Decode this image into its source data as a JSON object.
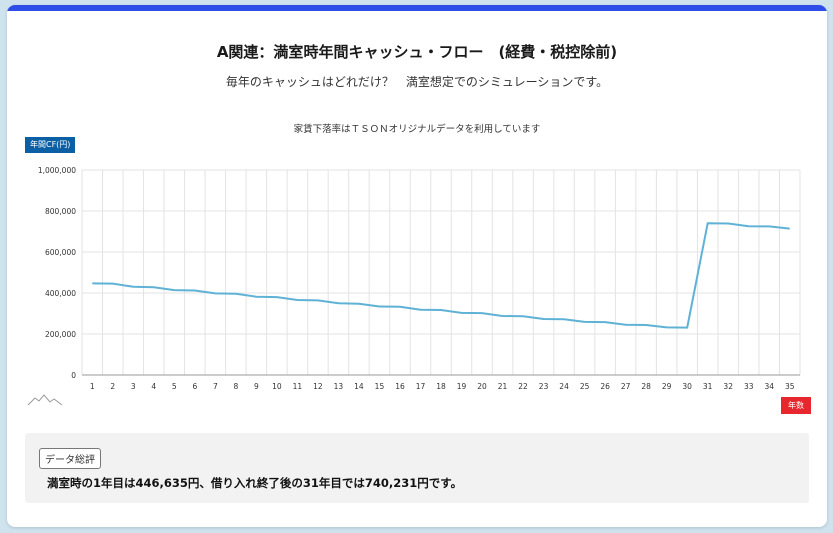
{
  "header": {
    "title": "A関連：満室時年間キャッシュ・フロー　(経費・税控除前)",
    "subtitle": "毎年のキャッシュはどれだけ？　満室想定でのシミュレーションです。",
    "note": "家賃下落率はＴＳＯＮオリジナルデータを利用しています"
  },
  "colors": {
    "topbar": "#2e4ee8",
    "line": "#5fb2d6",
    "ybadge": "#0b5fa5",
    "xbadge": "#e8262d"
  },
  "chart_data": {
    "type": "line",
    "ylabel": "年間CF(円)",
    "xlabel": "年数",
    "ylim": [
      0,
      1000000
    ],
    "yticks": [
      "0",
      "200,000",
      "400,000",
      "600,000",
      "800,000",
      "1,000,000"
    ],
    "grid": true,
    "categories": [
      "1",
      "2",
      "3",
      "4",
      "5",
      "6",
      "7",
      "8",
      "9",
      "10",
      "11",
      "12",
      "13",
      "14",
      "15",
      "16",
      "17",
      "18",
      "19",
      "20",
      "21",
      "22",
      "23",
      "24",
      "25",
      "26",
      "27",
      "28",
      "29",
      "30",
      "31",
      "32",
      "33",
      "34",
      "35"
    ],
    "series": [
      {
        "values": [
          446635,
          446000,
          430000,
          428000,
          414000,
          412000,
          398000,
          396000,
          382000,
          380000,
          366000,
          364000,
          350000,
          348000,
          334000,
          333000,
          318000,
          317000,
          303000,
          302000,
          288000,
          287000,
          273000,
          272000,
          259000,
          258000,
          245000,
          244000,
          232000,
          231000,
          740231,
          739000,
          726000,
          725000,
          714000
        ]
      }
    ]
  },
  "summary": {
    "tag": "データ総評",
    "text": "満室時の1年目は446,635円、借り入れ終了後の31年目では740,231円です。"
  }
}
